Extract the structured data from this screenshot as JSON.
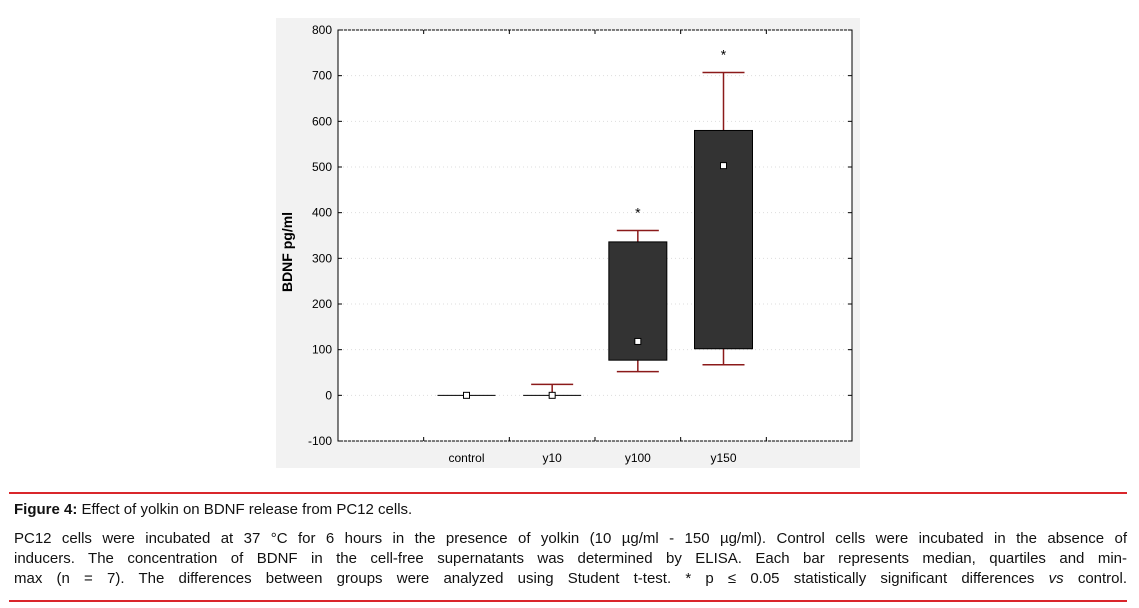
{
  "chart_data": {
    "type": "box",
    "ylabel": "BDNF pg/ml",
    "ylim": [
      -100,
      800
    ],
    "yticks": [
      800,
      700,
      600,
      500,
      400,
      300,
      200,
      100,
      0,
      -100
    ],
    "categories": [
      "control",
      "y10",
      "y100",
      "y150"
    ],
    "boxes": [
      {
        "category": "control",
        "min": 0,
        "q1": 0,
        "median": 0,
        "q3": 0,
        "max": 0,
        "significant": false
      },
      {
        "category": "y10",
        "min": 0,
        "q1": 0,
        "median": 0,
        "q3": 0,
        "max": 24,
        "significant": false
      },
      {
        "category": "y100",
        "min": 52,
        "q1": 77,
        "median": 118,
        "q3": 336,
        "max": 361,
        "significant": true
      },
      {
        "category": "y150",
        "min": 67,
        "q1": 102,
        "median": 503,
        "q3": 580,
        "max": 707,
        "significant": true
      }
    ],
    "significance_marker": "*",
    "colors": {
      "box_fill": "#333333",
      "whisker": "#8b1a1a",
      "background": "#f2f2f2"
    }
  },
  "caption": {
    "label": "Figure 4:",
    "title": "Effect of yolkin on BDNF release from PC12 cells.",
    "body_line1": "PC12 cells were incubated at 37 °C for 6 hours in the presence of yolkin (10 µg/ml - 150 µg/ml). Control cells were incubated in the absence of",
    "body_line2": "inducers. The concentration of BDNF in the cell-free supernatants was determined by ELISA. Each bar represents median, quartiles and min-",
    "body_line3_a": "max (n = 7). The differences between groups were analyzed using Student t-test. * p ≤ 0.05 statistically significant differences ",
    "body_line3_vs": "vs",
    "body_line3_b": " control."
  }
}
